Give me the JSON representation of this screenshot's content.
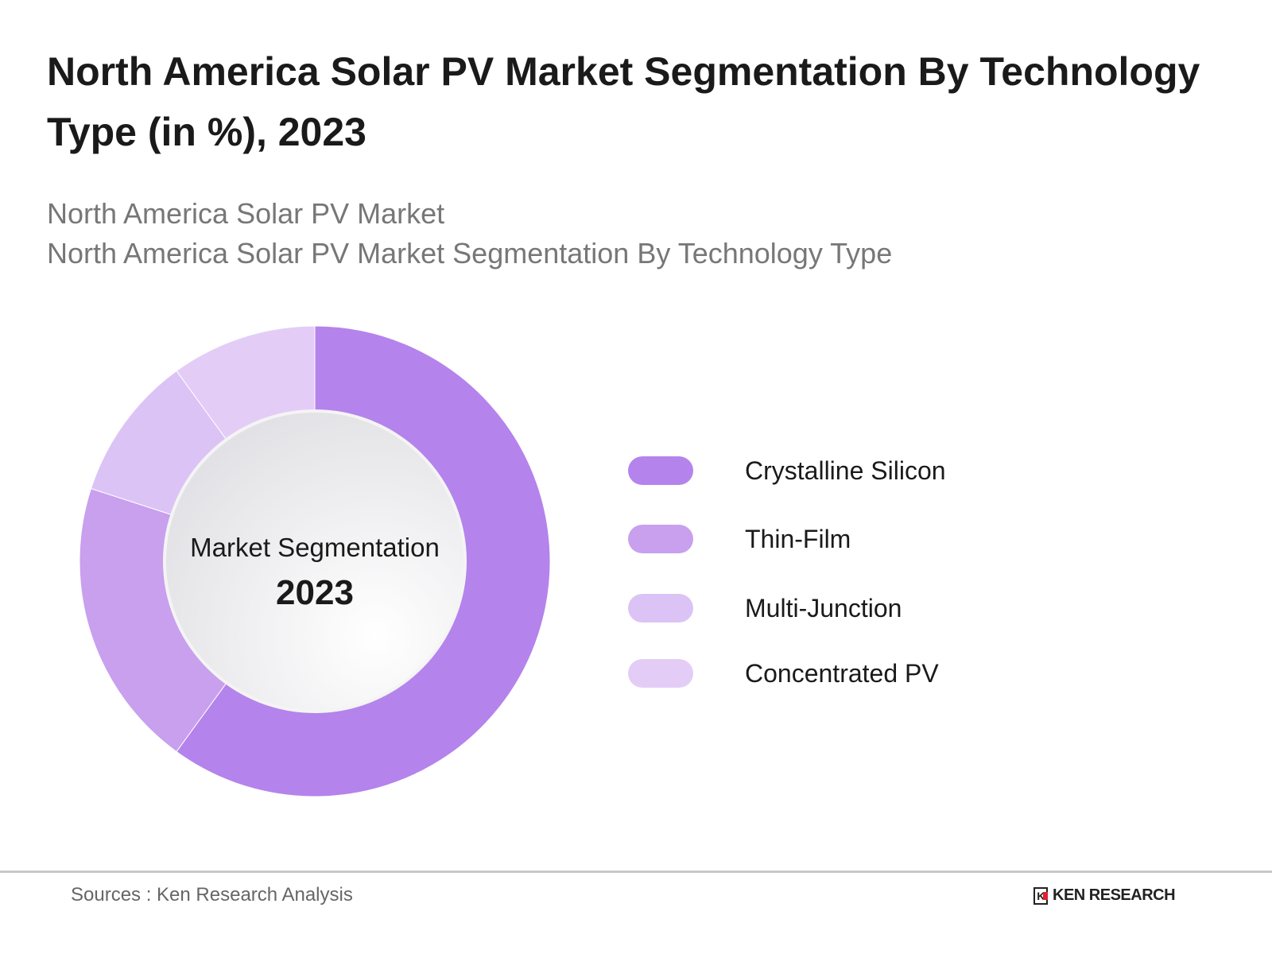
{
  "title": "North America Solar PV Market Segmentation By Technology Type (in %), 2023",
  "subtitle_lines": [
    "North America Solar PV Market",
    "North America Solar PV Market Segmentation By Technology Type"
  ],
  "chart_data": {
    "type": "pie",
    "variant": "donut",
    "center_label": "Market Segmentation",
    "center_value": "2023",
    "categories": [
      "Crystalline Silicon",
      "Thin-Film",
      "Multi-Junction",
      "Concentrated PV"
    ],
    "values": [
      60,
      20,
      10,
      10
    ],
    "colors": [
      "#b583ec",
      "#c8a0ee",
      "#dcc3f6",
      "#e3cdf7"
    ],
    "legend_position": "right"
  },
  "footer": {
    "sources": "Sources : Ken Research Analysis",
    "logo_text": "KEN RESEARCH",
    "logo_mark": "K"
  }
}
